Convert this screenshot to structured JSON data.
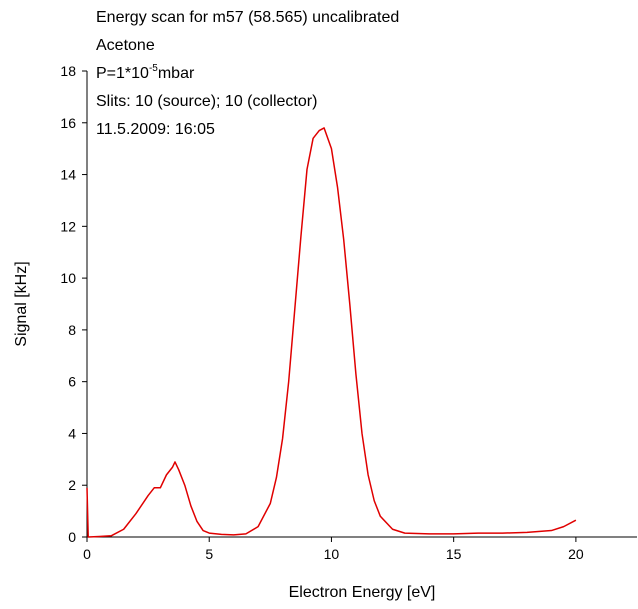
{
  "chart_data": {
    "type": "line",
    "annotations": [
      "Energy scan for m57 (58.565) uncalibrated",
      "Acetone",
      {
        "text": "P=1*10",
        "superscript": "-5",
        "suffix": "mbar"
      },
      "Slits: 10 (source); 10 (collector)",
      "11.5.2009: 16:05"
    ],
    "x_label": "Electron Energy [eV]",
    "y_label": "Signal [kHz]",
    "xlim": [
      0,
      22.5
    ],
    "ylim": [
      0,
      18
    ],
    "xticks": [
      0,
      5,
      10,
      15,
      20
    ],
    "yticks": [
      0,
      2,
      4,
      6,
      8,
      10,
      12,
      14,
      16,
      18
    ],
    "x": [
      0,
      0.05,
      0.5,
      1,
      1.5,
      2,
      2.5,
      2.75,
      3,
      3.25,
      3.5,
      3.6,
      3.75,
      4,
      4.25,
      4.5,
      4.75,
      5,
      5.5,
      6,
      6.5,
      7,
      7.5,
      7.75,
      8,
      8.25,
      8.5,
      8.75,
      9,
      9.25,
      9.5,
      9.7,
      10,
      10.25,
      10.5,
      10.75,
      11,
      11.25,
      11.5,
      11.75,
      12,
      12.5,
      13,
      14,
      15,
      16,
      17,
      18,
      19,
      19.5,
      20
    ],
    "series": [
      {
        "color": "#e00000",
        "values": [
          1.9,
          0,
          0.02,
          0.05,
          0.3,
          0.9,
          1.6,
          1.9,
          1.9,
          2.4,
          2.7,
          2.9,
          2.6,
          2.0,
          1.2,
          0.6,
          0.25,
          0.15,
          0.1,
          0.08,
          0.12,
          0.4,
          1.3,
          2.3,
          3.8,
          6.0,
          8.8,
          11.6,
          14.2,
          15.4,
          15.7,
          15.8,
          15.0,
          13.5,
          11.5,
          9.0,
          6.3,
          4.0,
          2.4,
          1.4,
          0.8,
          0.3,
          0.15,
          0.12,
          0.12,
          0.15,
          0.15,
          0.18,
          0.25,
          0.4,
          0.65
        ]
      }
    ]
  }
}
